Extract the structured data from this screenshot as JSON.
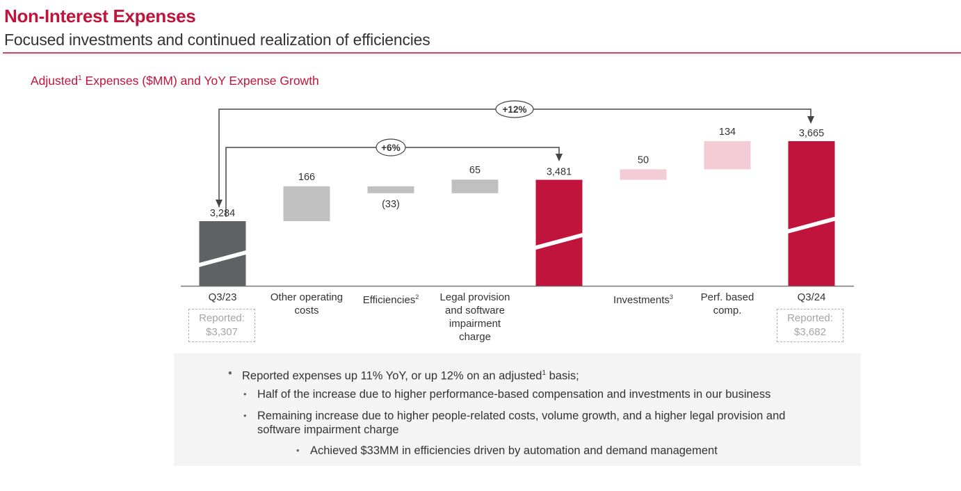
{
  "header": {
    "title": "Non-Interest Expenses",
    "subtitle": "Focused investments and continued realization of efficiencies"
  },
  "chart_title": {
    "prefix": "Adjusted",
    "sup": "1",
    "suffix": " Expenses ($MM) and YoY Expense Growth"
  },
  "colors": {
    "brand_red": "#c0143c",
    "start_bar": "#5f6164",
    "neg_pos_gray": "#c0c0c0",
    "light_pink": "#f4ccd5",
    "axis": "#777777"
  },
  "chart_data": {
    "type": "waterfall",
    "title": "Adjusted Expenses ($MM) and YoY Expense Growth",
    "categories": [
      "Q3/23",
      "Other operating costs",
      "Efficiencies²",
      "Legal provision and software impairment charge",
      "",
      "Investments³",
      "Perf. based comp.",
      "Q3/24"
    ],
    "steps": [
      {
        "label": "Q3/23",
        "kind": "total",
        "value": 3284,
        "display": "3,284",
        "color_key": "start_bar"
      },
      {
        "label": "Other operating costs",
        "kind": "delta",
        "value": 166,
        "display": "166",
        "color_key": "neg_pos_gray"
      },
      {
        "label": "Efficiencies",
        "sup": "2",
        "kind": "delta",
        "value": -33,
        "display": "(33)",
        "color_key": "neg_pos_gray"
      },
      {
        "label": "Legal provision and software impairment charge",
        "kind": "delta",
        "value": 65,
        "display": "65",
        "color_key": "neg_pos_gray"
      },
      {
        "label": "",
        "kind": "total",
        "value": 3481,
        "display": "3,481",
        "color_key": "brand_red"
      },
      {
        "label": "Investments",
        "sup": "3",
        "kind": "delta",
        "value": 50,
        "display": "50",
        "color_key": "light_pink"
      },
      {
        "label": "Perf. based comp.",
        "kind": "delta",
        "value": 134,
        "display": "134",
        "color_key": "light_pink"
      },
      {
        "label": "Q3/24",
        "kind": "total",
        "value": 3665,
        "display": "3,665",
        "color_key": "brand_red"
      }
    ],
    "category_lines": [
      [
        "Q3/23"
      ],
      [
        "Other operating",
        "costs"
      ],
      [
        "Efficiencies"
      ],
      [
        "Legal provision",
        "and software",
        "impairment",
        "charge"
      ],
      [],
      [
        "Investments"
      ],
      [
        "Perf. based",
        "comp."
      ],
      [
        "Q3/24"
      ]
    ],
    "annotations": [
      {
        "text": "+12%",
        "from": "Q3/23",
        "to": "Q3/24"
      },
      {
        "text": "+6%",
        "from": "Q3/23",
        "to": "3,481 subtotal"
      }
    ],
    "axis_break": true,
    "ylim_visible": [
      3150,
      3700
    ],
    "legend": "none",
    "grid": false
  },
  "reported": [
    {
      "label": "Reported:",
      "value": "$3,307",
      "for": "Q3/23"
    },
    {
      "label": "Reported:",
      "value": "$3,682",
      "for": "Q3/24"
    }
  ],
  "bullets": [
    {
      "level": 1,
      "text_pre": "Reported expenses up 11% YoY, or up 12% on an adjusted",
      "sup": "1",
      "text_post": " basis;"
    },
    {
      "level": 2,
      "text": "Half of the increase due to higher performance-based compensation and investments in our business"
    },
    {
      "level": 2,
      "text": "Remaining increase due to higher people-related costs, volume growth, and a higher legal provision and software impairment charge"
    },
    {
      "level": 3,
      "text": "Achieved $33MM in efficiencies driven by automation and demand management"
    }
  ]
}
